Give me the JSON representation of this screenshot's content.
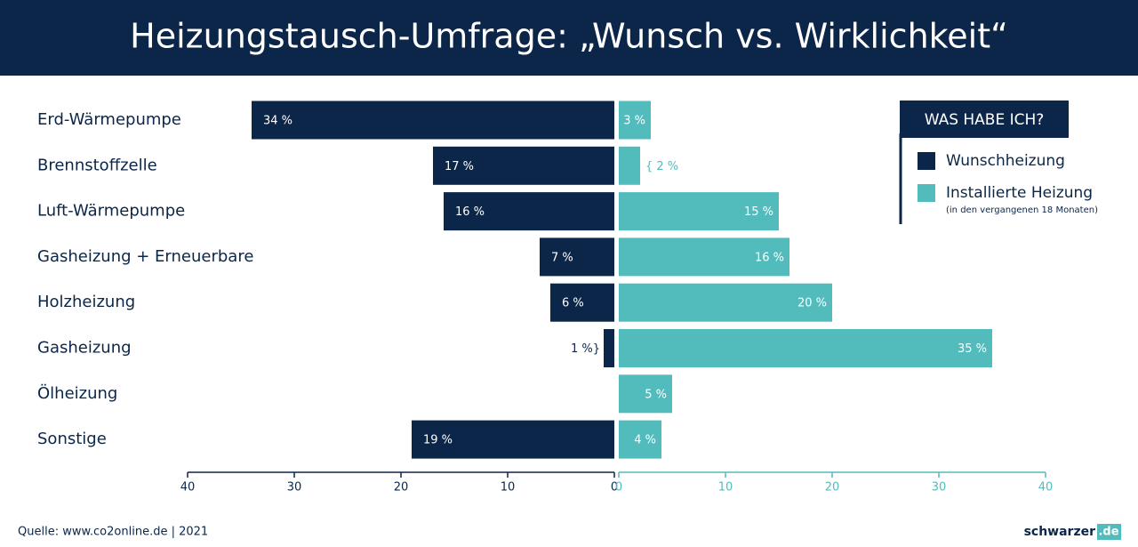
{
  "chart_data": {
    "type": "butterfly",
    "title": "Heizungstausch-Umfrage: „Wunsch vs. Wirklichkeit“",
    "categories": [
      "Erd-Wärmepumpe",
      "Brennstoffzelle",
      "Luft-Wärmepumpe",
      "Gasheizung + Erneuerbare",
      "Holzheizung",
      "Gasheizung",
      "Ölheizung",
      "Sonstige"
    ],
    "series": [
      {
        "name": "Wunschheizung",
        "color": "#0b2648",
        "side": "left",
        "values": [
          34,
          17,
          16,
          7,
          6,
          1,
          null,
          19
        ],
        "value_labels": [
          "34 %",
          "17 %",
          "16 %",
          "7 %",
          "6 %",
          "1 %}",
          null,
          "19 %"
        ]
      },
      {
        "name": "Installierte Heizung",
        "color": "#52bcbd",
        "side": "right",
        "note": "(in den vergangenen 18 Monaten)",
        "values": [
          3,
          2,
          15,
          16,
          20,
          35,
          5,
          4
        ],
        "value_labels": [
          "3 %",
          "{ 2 %",
          "15 %",
          "16 %",
          "20 %",
          "35 %",
          "5 %",
          "4 %"
        ]
      }
    ],
    "xlim": [
      0,
      40
    ],
    "xticks": [
      0,
      10,
      20,
      30,
      40
    ],
    "legend_title": "WAS HABE ICH?",
    "source": "Quelle: www.co2online.de | 2021",
    "logo": {
      "name": "schwarzer",
      "domain": ".de"
    }
  }
}
